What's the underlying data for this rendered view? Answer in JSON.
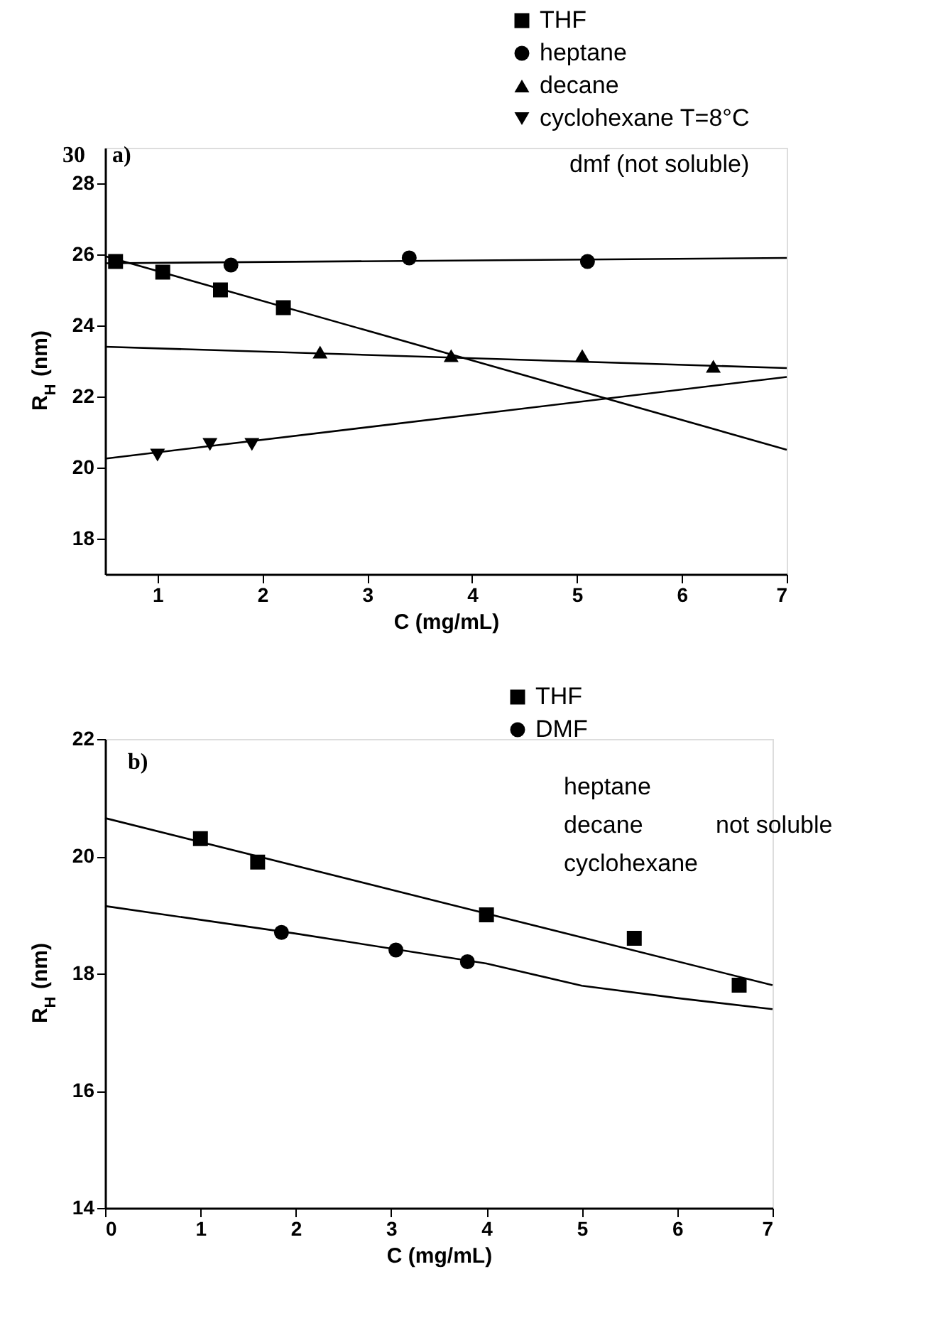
{
  "chart_data": [
    {
      "type": "scatter",
      "xlabel": "C (mg/mL)",
      "ylabel": "R$_{H}$ (nm)",
      "xlim": [
        0.5,
        7
      ],
      "ylim": [
        17,
        29
      ],
      "xticks": [
        1,
        2,
        3,
        4,
        5,
        6,
        7
      ],
      "yticks": [
        18,
        20,
        22,
        24,
        26,
        28
      ],
      "grid": false,
      "legend": "top right",
      "annotations": [
        "30",
        "a)",
        "dmf (not soluble)"
      ],
      "series": [
        {
          "name": "THF",
          "marker": "square",
          "color": "#000000",
          "x": [
            0.6,
            1.05,
            1.6,
            2.2
          ],
          "values": [
            25.8,
            25.5,
            25.0,
            24.5
          ]
        },
        {
          "name": "heptane",
          "marker": "circle",
          "color": "#000000",
          "x": [
            1.7,
            3.4,
            5.1
          ],
          "values": [
            25.7,
            25.9,
            25.8
          ]
        },
        {
          "name": "decane",
          "marker": "triangle",
          "color": "#000000",
          "x": [
            2.55,
            3.8,
            5.05,
            6.3
          ],
          "values": [
            23.25,
            23.15,
            23.15,
            22.85
          ]
        },
        {
          "name": "cyclohexane T=8°C",
          "marker": "triangle-down",
          "color": "#000000",
          "x": [
            1.0,
            1.5,
            1.9
          ],
          "values": [
            20.35,
            20.65,
            20.65
          ]
        },
        {
          "type": "line",
          "color": "#000000",
          "x": [
            0.5,
            7
          ],
          "values": [
            25.95,
            20.5
          ]
        },
        {
          "type": "line",
          "color": "#000000",
          "x": [
            0.5,
            7
          ],
          "values": [
            25.75,
            25.9
          ]
        },
        {
          "type": "line",
          "color": "#000000",
          "x": [
            0.5,
            7
          ],
          "values": [
            23.4,
            22.8
          ]
        },
        {
          "type": "line",
          "color": "#000000",
          "x": [
            0.5,
            7
          ],
          "values": [
            20.25,
            22.55
          ]
        }
      ]
    },
    {
      "type": "scatter",
      "xlabel": "C (mg/mL)",
      "ylabel": "R$_{H}$ (nm)",
      "xlim": [
        0,
        7
      ],
      "ylim": [
        14,
        22
      ],
      "xticks": [
        0,
        1,
        2,
        3,
        4,
        5,
        6,
        7
      ],
      "yticks": [
        14,
        16,
        18,
        20,
        22
      ],
      "grid": false,
      "legend": "top right",
      "annotations": [
        "b)",
        "heptane",
        "decane",
        "cyclohexane",
        "not soluble"
      ],
      "series": [
        {
          "name": "THF",
          "marker": "square",
          "color": "#000000",
          "x": [
            1.0,
            1.6,
            4.0,
            5.55,
            6.65
          ],
          "values": [
            20.3,
            19.9,
            19.0,
            18.6,
            17.8
          ]
        },
        {
          "name": "DMF",
          "marker": "circle",
          "color": "#000000",
          "x": [
            1.85,
            3.05,
            3.8
          ],
          "values": [
            18.7,
            18.4,
            18.2
          ]
        },
        {
          "type": "line",
          "color": "#000000",
          "x": [
            0,
            7
          ],
          "values": [
            20.65,
            17.8
          ]
        },
        {
          "type": "line",
          "color": "#000000",
          "x": [
            0,
            2,
            4,
            5,
            6,
            7
          ],
          "values": [
            19.15,
            18.68,
            18.17,
            17.79,
            17.58,
            17.39
          ]
        }
      ]
    }
  ]
}
